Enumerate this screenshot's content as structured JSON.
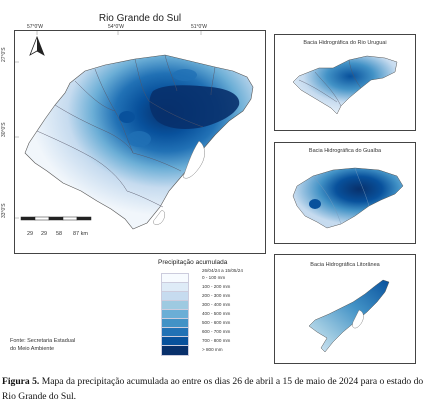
{
  "main_map": {
    "title": "Rio Grande do Sul",
    "lon_labels": [
      "57°0'W",
      "54°0'W",
      "51°0'W"
    ],
    "lat_labels": [
      "27°0'S",
      "30°0'S",
      "33°0'S"
    ],
    "north_icon": "north-arrow",
    "scale_labels": [
      "29",
      "29",
      "58",
      "87 km"
    ]
  },
  "insets": [
    {
      "title": "Bacia Hidrográfica do Rio Uruguai"
    },
    {
      "title": "Bacia Hidrográfica do Guaíba"
    },
    {
      "title": "Bacia Hidrográfica Litorânea"
    }
  ],
  "legend": {
    "title": "Precipitação acumulada",
    "date_range": "26/04/24 a 15/05/24",
    "classes": [
      {
        "label": "0 - 100 mm",
        "color": "#f7fbff"
      },
      {
        "label": "100 - 200 mm",
        "color": "#deebf7"
      },
      {
        "label": "200 - 300 mm",
        "color": "#c6dbef"
      },
      {
        "label": "300 - 400 mm",
        "color": "#9ecae1"
      },
      {
        "label": "400 - 500 mm",
        "color": "#6baed6"
      },
      {
        "label": "500 - 600 mm",
        "color": "#4292c6"
      },
      {
        "label": "600 - 700 mm",
        "color": "#2171b5"
      },
      {
        "label": "700 - 800 mm",
        "color": "#08519c"
      },
      {
        "label": "> 800 mm",
        "color": "#08306b"
      }
    ]
  },
  "source": {
    "line1": "Fonte: Secretaria Estadual",
    "line2": "do Meio Ambiente"
  },
  "caption": {
    "label": "Figura 5.",
    "text": " Mapa da precipitação acumulada ao entre os dias 26 de abril a 15 de maio de 2024 para o estado do Rio Grande do Sul."
  }
}
